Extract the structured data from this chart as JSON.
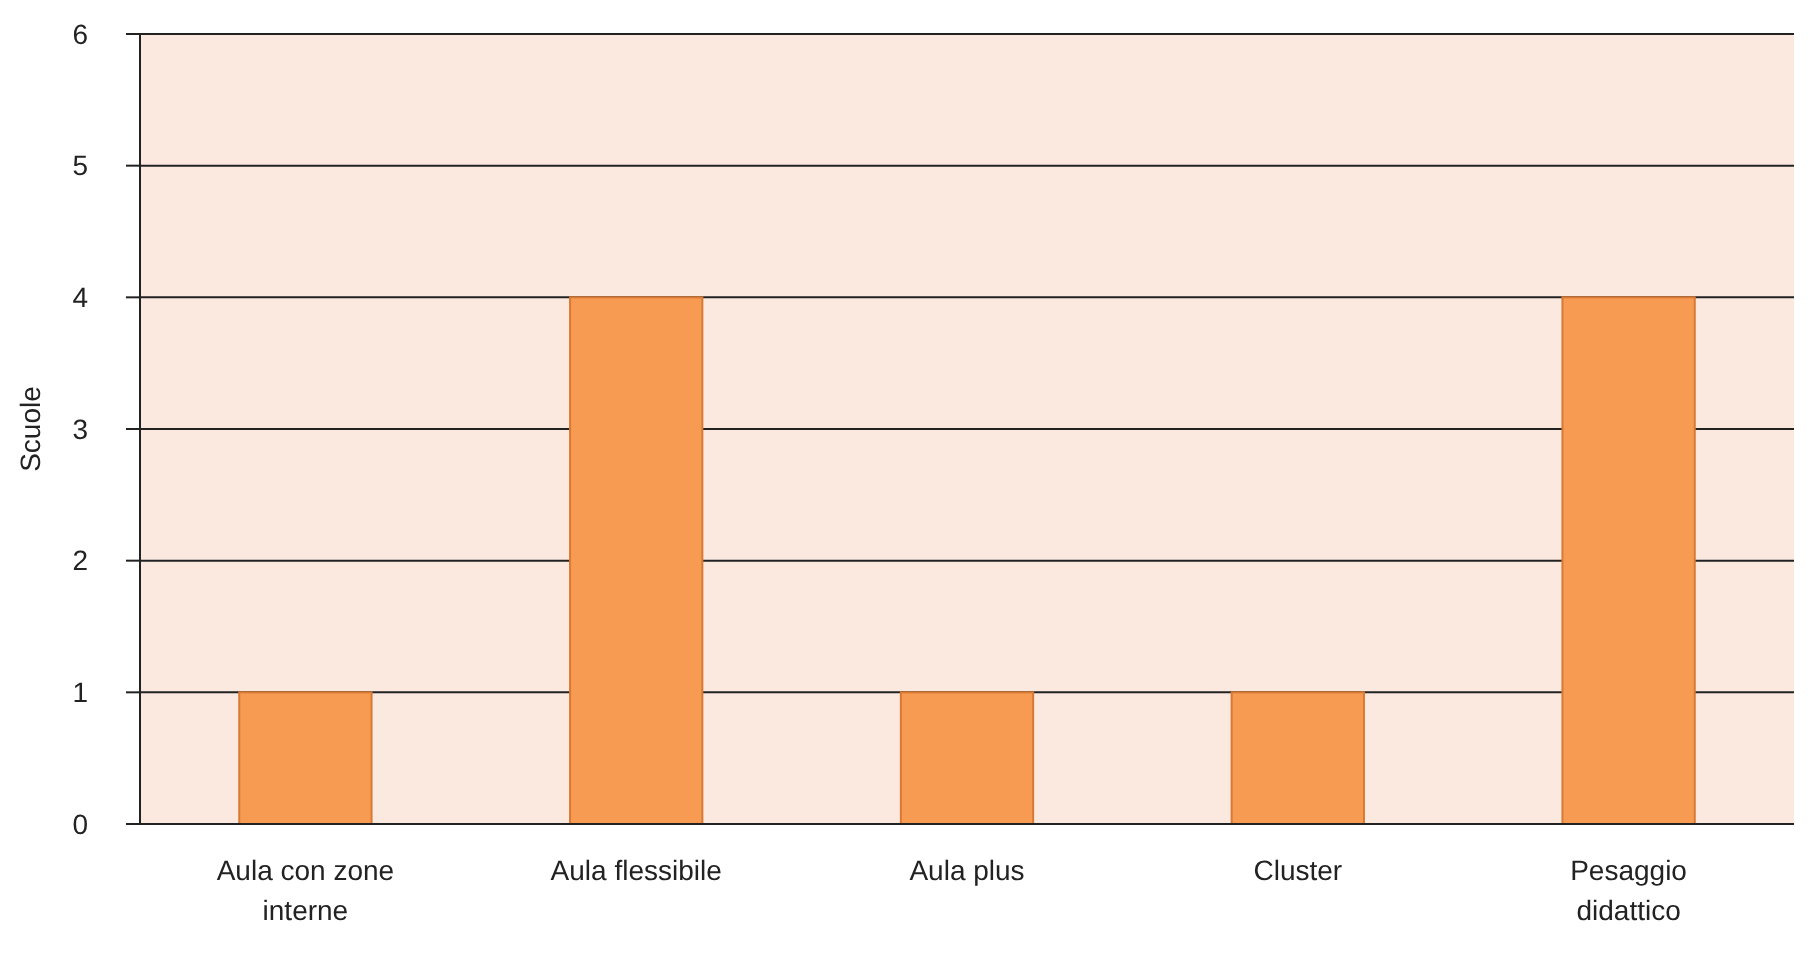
{
  "chart_data": {
    "type": "bar",
    "ylabel": "Scuole",
    "categories": [
      "Aula con zone interne",
      "Aula flessibile",
      "Aula plus",
      "Cluster",
      "Pesaggio didattico"
    ],
    "values": [
      1,
      4,
      1,
      1,
      4
    ],
    "color": "#f79a52",
    "ylim": [
      0,
      6
    ],
    "yticks": [
      0,
      1,
      2,
      3,
      4,
      5,
      6
    ],
    "grid": true
  }
}
